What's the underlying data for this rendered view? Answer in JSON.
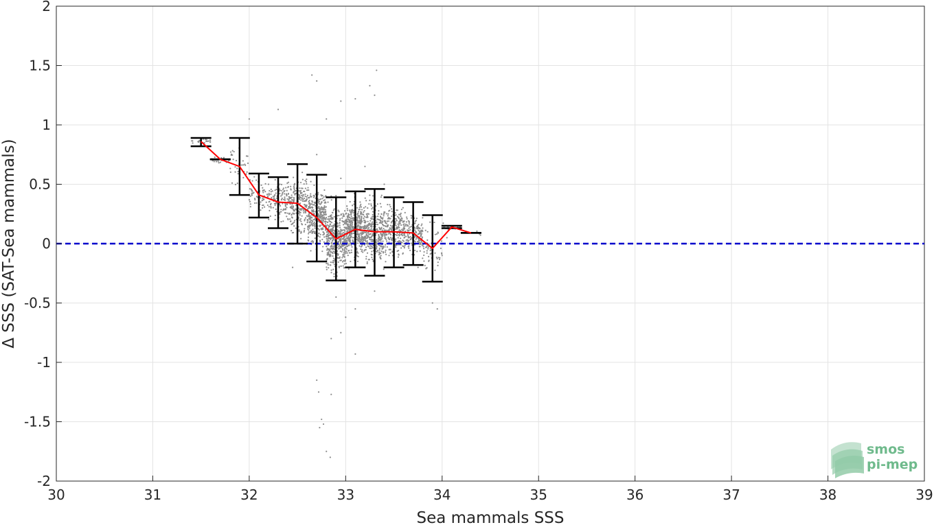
{
  "chart_data": {
    "type": "scatter",
    "title": "",
    "xlabel": "Sea mammals SSS",
    "ylabel": "Δ SSS (SAT-Sea mammals)",
    "xlim": [
      30,
      39
    ],
    "ylim": [
      -2,
      2
    ],
    "xticks": [
      "30",
      "31",
      "32",
      "33",
      "34",
      "35",
      "36",
      "37",
      "38",
      "39"
    ],
    "yticks": [
      "-2",
      "-1.5",
      "-1",
      "-0.5",
      "0",
      "0.5",
      "1",
      "1.5",
      "2"
    ],
    "grid": true,
    "reference_line": {
      "y": 0,
      "color": "#0000cc",
      "style": "dashed"
    },
    "scatter_color": "#8c8c8c",
    "scatter_points": [
      [
        32.0,
        1.05
      ],
      [
        32.3,
        1.13
      ],
      [
        32.65,
        1.42
      ],
      [
        32.7,
        1.37
      ],
      [
        32.95,
        1.2
      ],
      [
        33.1,
        1.22
      ],
      [
        33.25,
        1.33
      ],
      [
        33.3,
        1.25
      ],
      [
        33.32,
        1.46
      ],
      [
        32.8,
        1.05
      ],
      [
        32.4,
        0.35
      ],
      [
        32.5,
        0.2
      ],
      [
        32.6,
        0.45
      ],
      [
        32.75,
        0.3
      ],
      [
        32.85,
        0.1
      ],
      [
        32.9,
        0.05
      ],
      [
        33.0,
        0.25
      ],
      [
        33.05,
        -0.15
      ],
      [
        33.15,
        0.35
      ],
      [
        33.25,
        0.0
      ],
      [
        33.35,
        0.2
      ],
      [
        33.45,
        -0.1
      ],
      [
        33.55,
        0.15
      ],
      [
        33.65,
        0.05
      ],
      [
        33.75,
        -0.2
      ],
      [
        33.85,
        0.1
      ],
      [
        32.55,
        0.6
      ],
      [
        32.7,
        0.75
      ],
      [
        32.95,
        0.55
      ],
      [
        33.2,
        0.65
      ],
      [
        33.4,
        0.5
      ],
      [
        32.9,
        -0.45
      ],
      [
        33.1,
        -0.55
      ],
      [
        33.3,
        -0.4
      ],
      [
        33.0,
        -0.62
      ],
      [
        32.85,
        -0.8
      ],
      [
        32.95,
        -0.75
      ],
      [
        33.1,
        -0.93
      ],
      [
        32.7,
        -1.15
      ],
      [
        32.72,
        -1.25
      ],
      [
        32.75,
        -1.48
      ],
      [
        32.77,
        -1.52
      ],
      [
        32.8,
        -1.75
      ],
      [
        32.84,
        -1.8
      ],
      [
        32.85,
        -1.27
      ],
      [
        32.73,
        -1.55
      ],
      [
        33.9,
        -0.5
      ],
      [
        33.95,
        -0.55
      ],
      [
        34.0,
        -0.1
      ],
      [
        34.05,
        0.05
      ],
      [
        31.6,
        0.82
      ],
      [
        32.1,
        0.3
      ],
      [
        32.2,
        0.5
      ],
      [
        32.3,
        0.15
      ],
      [
        32.45,
        -0.2
      ]
    ],
    "mean_line": {
      "color": "#ff0000",
      "x": [
        31.5,
        31.7,
        31.9,
        32.1,
        32.3,
        32.5,
        32.7,
        32.9,
        33.1,
        33.3,
        33.5,
        33.7,
        33.9,
        34.1,
        34.3
      ],
      "y": [
        0.86,
        0.71,
        0.65,
        0.41,
        0.35,
        0.34,
        0.22,
        0.04,
        0.12,
        0.1,
        0.1,
        0.09,
        -0.04,
        0.14,
        0.09
      ]
    },
    "error_bars": {
      "color": "#000000",
      "x": [
        31.5,
        31.7,
        31.9,
        32.1,
        32.3,
        32.5,
        32.7,
        32.9,
        33.1,
        33.3,
        33.5,
        33.7,
        33.9,
        34.1,
        34.3
      ],
      "lower": [
        0.82,
        0.71,
        0.41,
        0.22,
        0.13,
        0.0,
        -0.15,
        -0.31,
        -0.2,
        -0.27,
        -0.2,
        -0.18,
        -0.32,
        0.13,
        0.09
      ],
      "upper": [
        0.89,
        0.71,
        0.89,
        0.59,
        0.56,
        0.67,
        0.58,
        0.39,
        0.44,
        0.46,
        0.39,
        0.35,
        0.24,
        0.15,
        0.09
      ]
    }
  },
  "logo": {
    "line1": "smos",
    "line2": "pi-mep",
    "color": "#6fba8c"
  }
}
